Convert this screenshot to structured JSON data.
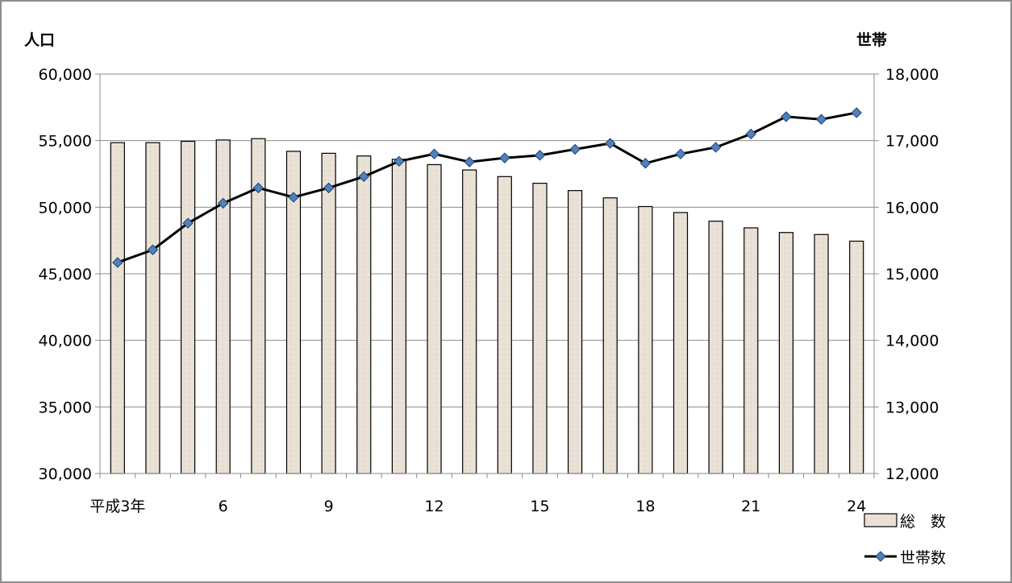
{
  "chart_data": {
    "type": "bar+line",
    "y_left_label": "人口",
    "y_right_label": "世帯",
    "y_left_lim": [
      30000,
      60000
    ],
    "y_right_lim": [
      12000,
      18000
    ],
    "y_left_ticks": [
      "30,000",
      "35,000",
      "40,000",
      "45,000",
      "50,000",
      "55,000",
      "60,000"
    ],
    "y_right_ticks": [
      "12,000",
      "13,000",
      "14,000",
      "15,000",
      "16,000",
      "17,000",
      "18,000"
    ],
    "x_tick_labels": [
      "平成3年",
      "",
      "",
      "6",
      "",
      "",
      "9",
      "",
      "",
      "12",
      "",
      "",
      "15",
      "",
      "",
      "18",
      "",
      "",
      "21",
      "",
      "",
      "24"
    ],
    "categories": [
      "3",
      "4",
      "5",
      "6",
      "7",
      "8",
      "9",
      "10",
      "11",
      "12",
      "13",
      "14",
      "15",
      "16",
      "17",
      "18",
      "19",
      "20",
      "21",
      "22",
      "23",
      "24"
    ],
    "series": [
      {
        "name": "総　数",
        "type": "bar",
        "axis": "left",
        "color": "#e8e0d4",
        "values": [
          54850,
          54850,
          54950,
          55050,
          55150,
          54200,
          54050,
          53850,
          53600,
          53200,
          52800,
          52300,
          51800,
          51250,
          50700,
          50050,
          49600,
          48950,
          48450,
          48100,
          47950,
          47450
        ]
      },
      {
        "name": "世帯数",
        "type": "line",
        "axis": "right",
        "color": "#000000",
        "marker_color": "#4f81bd",
        "values": [
          15170,
          15360,
          15760,
          16060,
          16290,
          16150,
          16290,
          16460,
          16690,
          16800,
          16680,
          16740,
          16780,
          16870,
          16960,
          16660,
          16800,
          16900,
          17100,
          17360,
          17320,
          17420
        ]
      }
    ],
    "grid": true,
    "legend_position": "bottom-right"
  }
}
